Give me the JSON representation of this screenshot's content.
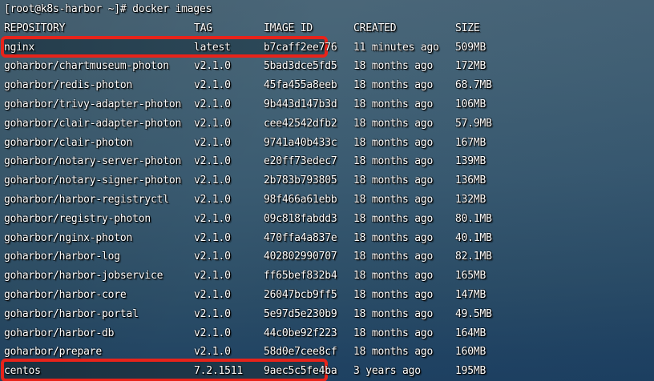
{
  "terminal": {
    "prompt_line": "[root@k8s-harbor ~]# docker images",
    "command": "docker images",
    "columns": [
      "REPOSITORY",
      "TAG",
      "IMAGE ID",
      "CREATED",
      "SIZE"
    ],
    "rows": [
      {
        "repo": "nginx",
        "tag": "latest",
        "id": "b7caff2ee776",
        "created": "11 minutes ago",
        "size": "509MB",
        "highlighted": true
      },
      {
        "repo": "goharbor/chartmuseum-photon",
        "tag": "v2.1.0",
        "id": "5bad3dce5fd5",
        "created": "18 months ago",
        "size": "172MB",
        "highlighted": false
      },
      {
        "repo": "goharbor/redis-photon",
        "tag": "v2.1.0",
        "id": "45fa455a8eeb",
        "created": "18 months ago",
        "size": "68.7MB",
        "highlighted": false
      },
      {
        "repo": "goharbor/trivy-adapter-photon",
        "tag": "v2.1.0",
        "id": "9b443d147b3d",
        "created": "18 months ago",
        "size": "106MB",
        "highlighted": false
      },
      {
        "repo": "goharbor/clair-adapter-photon",
        "tag": "v2.1.0",
        "id": "cee42542dfb2",
        "created": "18 months ago",
        "size": "57.9MB",
        "highlighted": false
      },
      {
        "repo": "goharbor/clair-photon",
        "tag": "v2.1.0",
        "id": "9741a40b433c",
        "created": "18 months ago",
        "size": "167MB",
        "highlighted": false
      },
      {
        "repo": "goharbor/notary-server-photon",
        "tag": "v2.1.0",
        "id": "e20ff73edec7",
        "created": "18 months ago",
        "size": "139MB",
        "highlighted": false
      },
      {
        "repo": "goharbor/notary-signer-photon",
        "tag": "v2.1.0",
        "id": "2b783b793805",
        "created": "18 months ago",
        "size": "136MB",
        "highlighted": false
      },
      {
        "repo": "goharbor/harbor-registryctl",
        "tag": "v2.1.0",
        "id": "98f466a61ebb",
        "created": "18 months ago",
        "size": "132MB",
        "highlighted": false
      },
      {
        "repo": "goharbor/registry-photon",
        "tag": "v2.1.0",
        "id": "09c818fabdd3",
        "created": "18 months ago",
        "size": "80.1MB",
        "highlighted": false
      },
      {
        "repo": "goharbor/nginx-photon",
        "tag": "v2.1.0",
        "id": "470ffa4a837e",
        "created": "18 months ago",
        "size": "40.1MB",
        "highlighted": false
      },
      {
        "repo": "goharbor/harbor-log",
        "tag": "v2.1.0",
        "id": "402802990707",
        "created": "18 months ago",
        "size": "82.1MB",
        "highlighted": false
      },
      {
        "repo": "goharbor/harbor-jobservice",
        "tag": "v2.1.0",
        "id": "ff65bef832b4",
        "created": "18 months ago",
        "size": "165MB",
        "highlighted": false
      },
      {
        "repo": "goharbor/harbor-core",
        "tag": "v2.1.0",
        "id": "26047bcb9ff5",
        "created": "18 months ago",
        "size": "147MB",
        "highlighted": false
      },
      {
        "repo": "goharbor/harbor-portal",
        "tag": "v2.1.0",
        "id": "5e97d5e230b9",
        "created": "18 months ago",
        "size": "49.5MB",
        "highlighted": false
      },
      {
        "repo": "goharbor/harbor-db",
        "tag": "v2.1.0",
        "id": "44c0be92f223",
        "created": "18 months ago",
        "size": "164MB",
        "highlighted": false
      },
      {
        "repo": "goharbor/prepare",
        "tag": "v2.1.0",
        "id": "58d0e7cee8cf",
        "created": "18 months ago",
        "size": "160MB",
        "highlighted": false
      },
      {
        "repo": "centos",
        "tag": "7.2.1511",
        "id": "9aec5c5fe4ba",
        "created": "3 years ago",
        "size": "195MB",
        "highlighted": true
      }
    ],
    "colors": {
      "highlight_border": "#e8231a",
      "text": "#ffffff",
      "background_top": "#4b6779",
      "background_bottom": "#1e4161",
      "nginx_row_fill": "#2a4454",
      "centos_row_fill": "#1d3445"
    }
  }
}
